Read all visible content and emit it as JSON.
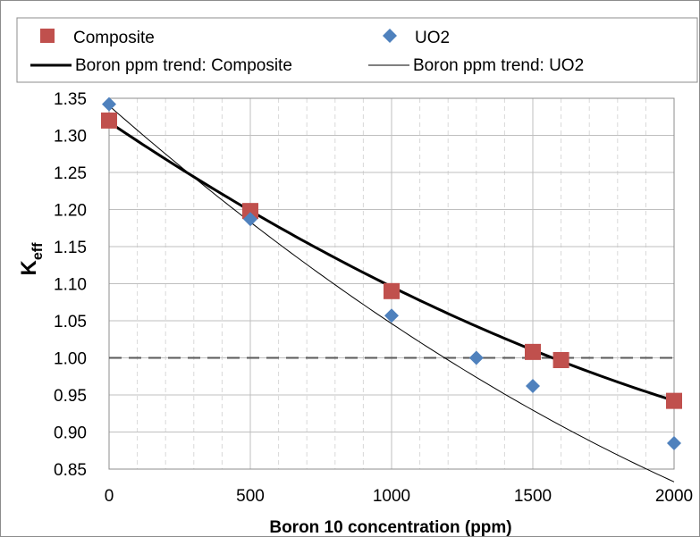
{
  "chart_data": {
    "type": "scatter",
    "title": "",
    "xlabel": "Boron 10 concentration (ppm)",
    "ylabel_main": "K",
    "ylabel_sub": "eff",
    "xlim": [
      0,
      2000
    ],
    "ylim": [
      0.85,
      1.35
    ],
    "x_ticks": [
      0,
      500,
      1000,
      1500,
      2000
    ],
    "y_ticks": [
      0.85,
      0.9,
      0.95,
      1.0,
      1.05,
      1.1,
      1.15,
      1.2,
      1.25,
      1.3,
      1.35
    ],
    "minor_x_step": 100,
    "grid": true,
    "reference_line": {
      "y": 1.0,
      "style": "dashed"
    },
    "legend_position": "top",
    "series": [
      {
        "name": "Composite",
        "kind": "points",
        "marker": "square",
        "color": "#c0504d",
        "x": [
          0,
          500,
          1000,
          1500,
          1600,
          2000
        ],
        "y": [
          1.32,
          1.198,
          1.09,
          1.008,
          0.997,
          0.942
        ]
      },
      {
        "name": "UO2",
        "kind": "points",
        "marker": "diamond",
        "color": "#4f81bd",
        "x": [
          0,
          500,
          1000,
          1300,
          1500,
          2000
        ],
        "y": [
          1.342,
          1.187,
          1.057,
          1.0,
          0.962,
          0.885
        ]
      },
      {
        "name": "Boron ppm trend: Composite",
        "kind": "trend",
        "color": "#000000",
        "weight": "thick",
        "coef": [
          1.3178,
          -0.000256,
          3.41e-08
        ]
      },
      {
        "name": "Boron ppm trend: UO2",
        "kind": "trend",
        "color": "#000000",
        "weight": "thin",
        "coef": [
          1.34,
          -0.000334,
          4.02e-08
        ]
      }
    ]
  }
}
